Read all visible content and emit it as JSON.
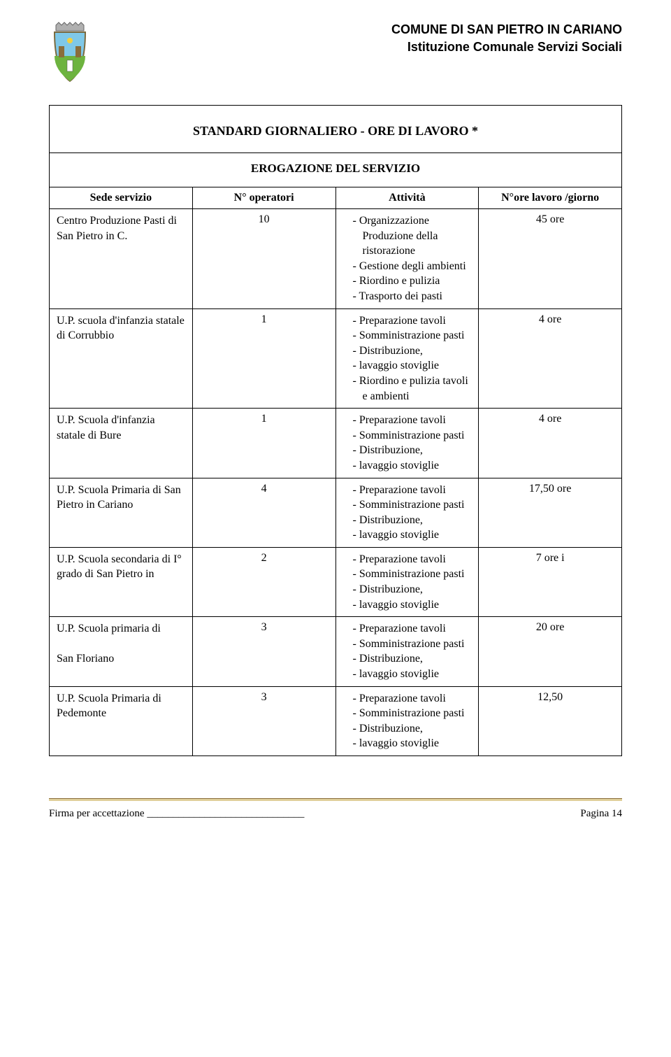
{
  "header": {
    "line1": "COMUNE DI SAN PIETRO IN CARIANO",
    "line2": "Istituzione Comunale Servizi Sociali"
  },
  "title": "STANDARD GIORNALIERO - ORE DI LAVORO *",
  "subtitle": "EROGAZIONE DEL SERVIZIO",
  "columns": {
    "sede": "Sede servizio",
    "nop": "N° operatori",
    "att": "Attività",
    "ore": "N°ore lavoro /giorno"
  },
  "rows": [
    {
      "sede": "Centro Produzione Pasti di San Pietro in C.",
      "nop": "10",
      "activities": [
        "Organizzazione Produzione della ristorazione",
        "Gestione degli ambienti",
        "Riordino e pulizia",
        "Trasporto dei pasti"
      ],
      "ore": "45 ore"
    },
    {
      "sede": "U.P. scuola d'infanzia statale di Corrubbio",
      "nop": "1",
      "activities": [
        "Preparazione tavoli",
        "Somministrazione pasti",
        "Distribuzione,",
        "lavaggio stoviglie",
        "Riordino e pulizia tavoli e ambienti"
      ],
      "ore": "4 ore"
    },
    {
      "sede": "U.P. Scuola d'infanzia statale di Bure",
      "nop": "1",
      "activities": [
        "Preparazione tavoli",
        "Somministrazione pasti",
        "Distribuzione,",
        "lavaggio stoviglie"
      ],
      "ore": "4 ore"
    },
    {
      "sede": "U.P. Scuola Primaria di San Pietro in Cariano",
      "nop": "4",
      "activities": [
        "Preparazione tavoli",
        "Somministrazione pasti",
        "Distribuzione,",
        "lavaggio stoviglie"
      ],
      "ore": "17,50  ore"
    },
    {
      "sede": "U.P. Scuola secondaria di I° grado di San Pietro in",
      "nop": "2",
      "activities": [
        "Preparazione tavoli",
        "Somministrazione pasti",
        "Distribuzione,",
        "lavaggio stoviglie"
      ],
      "ore": "7 ore i"
    },
    {
      "sede": "U.P. Scuola primaria di\n\nSan Floriano",
      "nop": "3",
      "activities": [
        "Preparazione tavoli",
        "Somministrazione pasti",
        "Distribuzione,",
        "lavaggio stoviglie"
      ],
      "ore": "20 ore"
    },
    {
      "sede": "U.P. Scuola Primaria di Pedemonte",
      "nop": "3",
      "activities": [
        "Preparazione tavoli",
        "Somministrazione pasti",
        "Distribuzione,",
        "lavaggio stoviglie"
      ],
      "ore": "12,50"
    }
  ],
  "footer": {
    "sign": "Firma per accettazione ______________________________",
    "page": "Pagina 14"
  },
  "colors": {
    "text": "#000000",
    "border": "#000000",
    "footer_line": "#8a6d3b",
    "footer_accent": "#e0cf9a",
    "crest_crown": "#b0b0b0",
    "crest_sky": "#7fc8e8",
    "crest_grass": "#6db33f",
    "crest_border": "#7a6a3f"
  }
}
